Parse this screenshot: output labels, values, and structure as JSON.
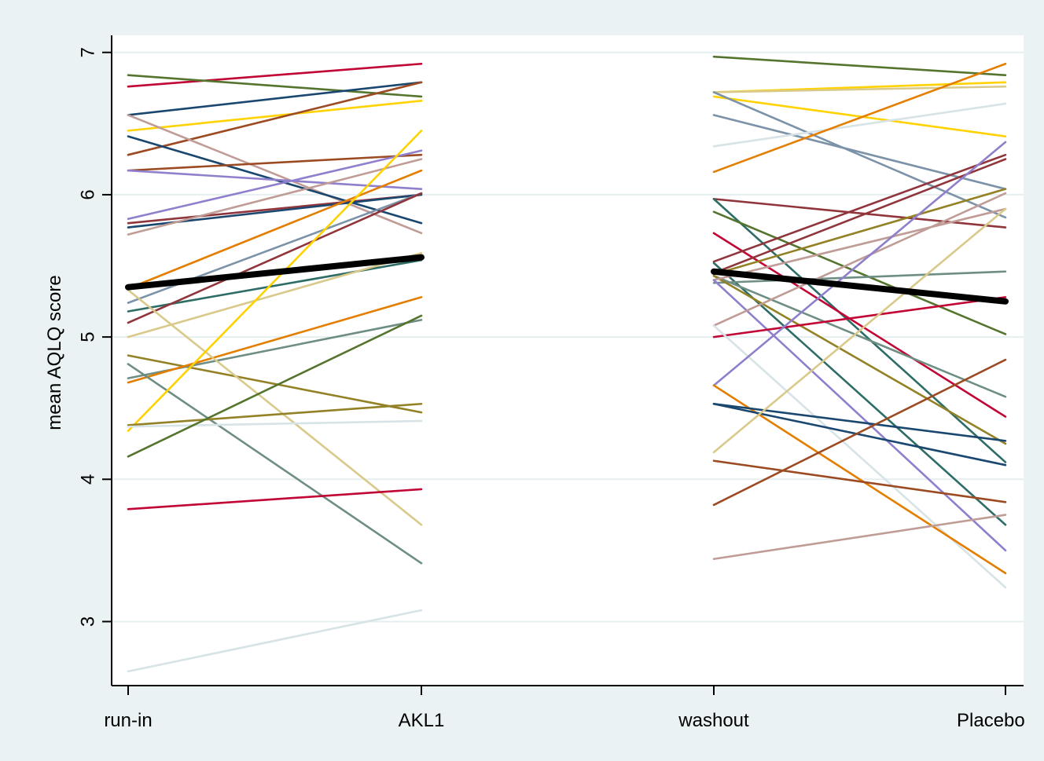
{
  "chart_data": {
    "type": "line",
    "title": "",
    "xlabel": "",
    "ylabel": "mean AQLQ score",
    "x_categories": [
      "run-in",
      "AKL1",
      "washout",
      "Placebo"
    ],
    "y_ticks": [
      "3",
      "4",
      "5",
      "6",
      "7"
    ],
    "ylim": [
      2.55,
      7.12
    ],
    "grid": "horizontal",
    "legend": "none",
    "mean_series": [
      {
        "name": "",
        "from": "run-in",
        "to": "AKL1",
        "values": [
          5.35,
          5.56
        ]
      },
      {
        "name": "",
        "from": "washout",
        "to": "Placebo",
        "values": [
          5.46,
          5.25
        ]
      }
    ],
    "segments_period_1": [
      {
        "values": [
          6.76,
          6.92
        ],
        "color": "#c10534"
      },
      {
        "values": [
          6.84,
          6.69
        ],
        "color": "#55752f"
      },
      {
        "values": [
          6.56,
          6.79
        ],
        "color": "#1a476f"
      },
      {
        "values": [
          6.45,
          6.66
        ],
        "color": "#ffd200"
      },
      {
        "values": [
          6.28,
          6.79
        ],
        "color": "#9c4a22"
      },
      {
        "values": [
          6.56,
          5.73
        ],
        "color": "#c09c96"
      },
      {
        "values": [
          6.41,
          5.8
        ],
        "color": "#1a476f"
      },
      {
        "values": [
          6.17,
          6.28
        ],
        "color": "#9c4a22"
      },
      {
        "values": [
          6.17,
          6.04
        ],
        "color": "#8f7fcc"
      },
      {
        "values": [
          5.83,
          6.31
        ],
        "color": "#8f7fcc"
      },
      {
        "values": [
          5.8,
          6.0
        ],
        "color": "#90353b"
      },
      {
        "values": [
          5.77,
          6.0
        ],
        "color": "#1a476f"
      },
      {
        "values": [
          5.72,
          6.25
        ],
        "color": "#c09c96"
      },
      {
        "values": [
          5.34,
          6.17
        ],
        "color": "#e37e00"
      },
      {
        "values": [
          5.24,
          6.01
        ],
        "color": "#7b92a8"
      },
      {
        "values": [
          5.18,
          5.54
        ],
        "color": "#2d6d66"
      },
      {
        "values": [
          5.1,
          6.01
        ],
        "color": "#90353b"
      },
      {
        "values": [
          5.0,
          5.59
        ],
        "color": "#d9c98b"
      },
      {
        "values": [
          4.87,
          4.47
        ],
        "color": "#938126"
      },
      {
        "values": [
          4.71,
          5.12
        ],
        "color": "#6e8e84"
      },
      {
        "values": [
          4.68,
          5.28
        ],
        "color": "#e37e00"
      },
      {
        "values": [
          4.81,
          3.41
        ],
        "color": "#6e8e84"
      },
      {
        "values": [
          5.33,
          3.68
        ],
        "color": "#d9c98b"
      },
      {
        "values": [
          4.34,
          6.45
        ],
        "color": "#ffd200"
      },
      {
        "values": [
          4.38,
          4.53
        ],
        "color": "#938126"
      },
      {
        "values": [
          4.37,
          4.41
        ],
        "color": "#d7e3e6"
      },
      {
        "values": [
          4.16,
          5.15
        ],
        "color": "#55752f"
      },
      {
        "values": [
          3.79,
          3.93
        ],
        "color": "#c10534"
      },
      {
        "values": [
          2.65,
          3.08
        ],
        "color": "#d7e3e6"
      }
    ],
    "segments_period_2": [
      {
        "values": [
          6.97,
          6.84
        ],
        "color": "#55752f"
      },
      {
        "values": [
          6.72,
          6.79
        ],
        "color": "#ffd200"
      },
      {
        "values": [
          6.72,
          6.76
        ],
        "color": "#d9c98b"
      },
      {
        "values": [
          6.69,
          6.41
        ],
        "color": "#ffd200"
      },
      {
        "values": [
          6.72,
          5.84
        ],
        "color": "#7b92a8"
      },
      {
        "values": [
          6.56,
          6.04
        ],
        "color": "#7b92a8"
      },
      {
        "values": [
          6.34,
          6.64
        ],
        "color": "#d7e3e6"
      },
      {
        "values": [
          6.16,
          6.92
        ],
        "color": "#e37e00"
      },
      {
        "values": [
          5.97,
          5.77
        ],
        "color": "#90353b"
      },
      {
        "values": [
          5.97,
          4.12
        ],
        "color": "#2d6d66"
      },
      {
        "values": [
          5.88,
          5.02
        ],
        "color": "#55752f"
      },
      {
        "values": [
          5.73,
          4.44
        ],
        "color": "#c10534"
      },
      {
        "values": [
          5.53,
          6.28
        ],
        "color": "#90353b"
      },
      {
        "values": [
          5.45,
          6.25
        ],
        "color": "#90353b"
      },
      {
        "values": [
          5.44,
          6.04
        ],
        "color": "#938126"
      },
      {
        "values": [
          5.52,
          3.68
        ],
        "color": "#2d6d66"
      },
      {
        "values": [
          5.38,
          5.46
        ],
        "color": "#6e8e84"
      },
      {
        "values": [
          5.43,
          4.58
        ],
        "color": "#6e8e84"
      },
      {
        "values": [
          5.43,
          4.25
        ],
        "color": "#938126"
      },
      {
        "values": [
          5.4,
          5.9
        ],
        "color": "#c09c96"
      },
      {
        "values": [
          5.4,
          3.5
        ],
        "color": "#8f7fcc"
      },
      {
        "values": [
          5.08,
          6.01
        ],
        "color": "#c09c96"
      },
      {
        "values": [
          5.0,
          5.28
        ],
        "color": "#c10534"
      },
      {
        "values": [
          5.08,
          3.24
        ],
        "color": "#d7e3e6"
      },
      {
        "values": [
          4.66,
          6.37
        ],
        "color": "#8f7fcc"
      },
      {
        "values": [
          4.66,
          3.34
        ],
        "color": "#e37e00"
      },
      {
        "values": [
          4.53,
          4.27
        ],
        "color": "#1a476f"
      },
      {
        "values": [
          4.53,
          4.1
        ],
        "color": "#1a476f"
      },
      {
        "values": [
          4.19,
          5.9
        ],
        "color": "#d9c98b"
      },
      {
        "values": [
          4.13,
          3.84
        ],
        "color": "#9c4a22"
      },
      {
        "values": [
          3.82,
          4.84
        ],
        "color": "#9c4a22"
      },
      {
        "values": [
          3.44,
          3.75
        ],
        "color": "#c09c96"
      }
    ]
  }
}
